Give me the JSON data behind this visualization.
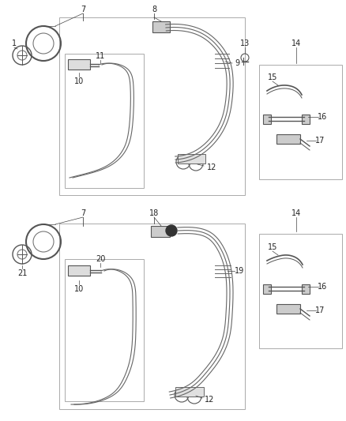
{
  "bg_color": "#ffffff",
  "line_color": "#444444",
  "text_color": "#222222",
  "figsize": [
    4.38,
    5.33
  ],
  "dpi": 100,
  "fig_width": 438,
  "fig_height": 533
}
